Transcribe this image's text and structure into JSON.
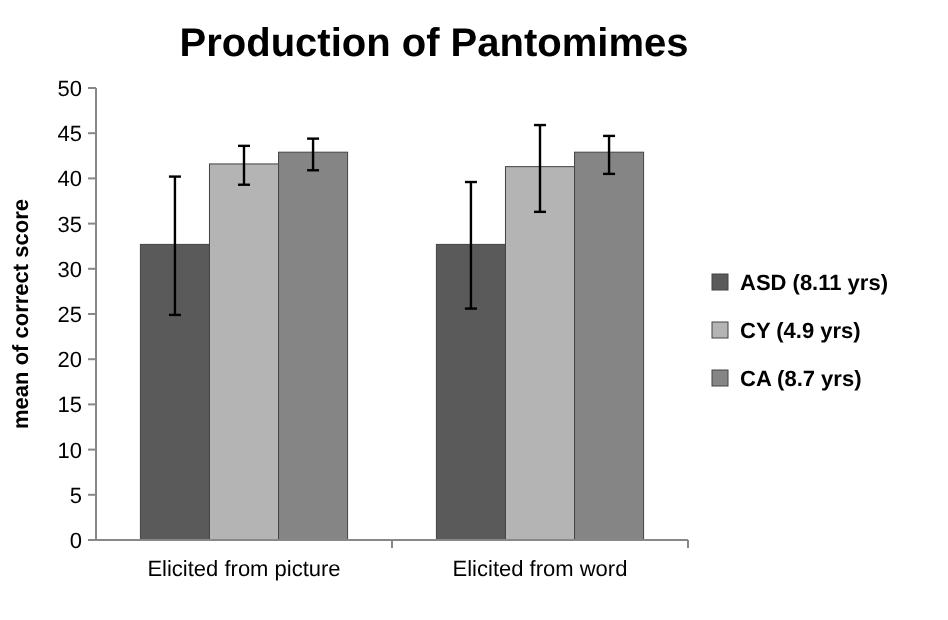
{
  "chart_data": {
    "type": "bar",
    "title": "Production of Pantomimes",
    "ylabel": "mean of correct score",
    "categories": [
      "Elicited from picture",
      "Elicited from word"
    ],
    "series": [
      {
        "name": "ASD (8.11 yrs)",
        "color": "#5a5a5a",
        "values": [
          32.7,
          32.7
        ],
        "errors": [
          [
            24.9,
            40.2
          ],
          [
            25.6,
            39.6
          ]
        ]
      },
      {
        "name": "CY (4.9 yrs)",
        "color": "#b4b4b4",
        "values": [
          41.6,
          41.3
        ],
        "errors": [
          [
            39.3,
            43.6
          ],
          [
            36.3,
            45.9
          ]
        ]
      },
      {
        "name": "CA (8.7 yrs)",
        "color": "#858585",
        "values": [
          42.9,
          42.9
        ],
        "errors": [
          [
            40.9,
            44.4
          ],
          [
            40.5,
            44.7
          ]
        ]
      }
    ],
    "ylim": [
      0,
      50
    ],
    "yticks": [
      0,
      5,
      10,
      15,
      20,
      25,
      30,
      35,
      40,
      45,
      50
    ],
    "legend": "right",
    "grid": false
  }
}
